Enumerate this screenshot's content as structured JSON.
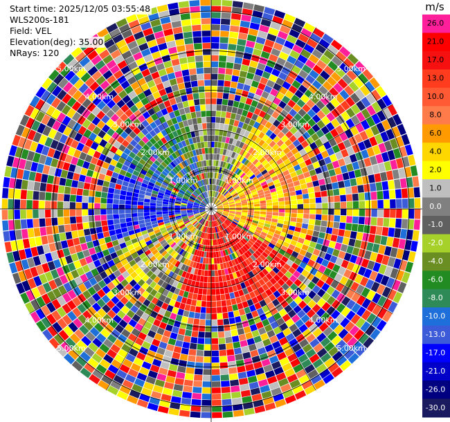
{
  "header": {
    "start_time": "Start time: 2025/12/05 03:55:48",
    "instrument": "WLS200s-181",
    "field": "Field: VEL",
    "elevation": "Elevation(deg): 35.00",
    "nrays": "NRays: 120"
  },
  "chart_data": {
    "type": "heatmap",
    "projection": "polar-ppi",
    "title": "",
    "field": "VEL",
    "elevation_deg": 35.0,
    "n_rays": 120,
    "range_rings_km": [
      1.0,
      2.0,
      3.0,
      4.0,
      5.0
    ],
    "range_labels": [
      "1.00km",
      "2.00km",
      "3.00km",
      "4.00km",
      "5.00km"
    ],
    "max_range_km": 5.3,
    "colorbar": {
      "unit": "m/s",
      "tick_labels": [
        "26.0",
        "21.0",
        "17.0",
        "13.0",
        "10.0",
        "8.0",
        "6.0",
        "4.0",
        "2.0",
        "1.0",
        "0.0",
        "-1.0",
        "-2.0",
        "-4.0",
        "-6.0",
        "-8.0",
        "-10.0",
        "-13.0",
        "-17.0",
        "-21.0",
        "-26.0",
        "-30.0"
      ],
      "colors": [
        "#ff1f9a",
        "#ff0000",
        "#f71010",
        "#ff3c1e",
        "#ff5a33",
        "#ff7b4a",
        "#ff9b00",
        "#ffd700",
        "#ffff00",
        "#bfbfbf",
        "#808080",
        "#606060",
        "#a6d12a",
        "#6b8e23",
        "#228b22",
        "#2e8b57",
        "#1e6fd9",
        "#3b5bd9",
        "#0000ff",
        "#0000c8",
        "#000080",
        "#1a1a5e"
      ]
    },
    "regions": [
      {
        "sector": "west",
        "description_value": "negative",
        "approx_ms": -17
      },
      {
        "sector": "northwest",
        "description_value": "negative",
        "approx_ms": -8
      },
      {
        "sector": "southwest",
        "description_value": "negative",
        "approx_ms": -4
      },
      {
        "sector": "east",
        "description_value": "positive",
        "approx_ms": 4
      },
      {
        "sector": "south",
        "description_value": "positive",
        "approx_ms": 21
      }
    ]
  }
}
